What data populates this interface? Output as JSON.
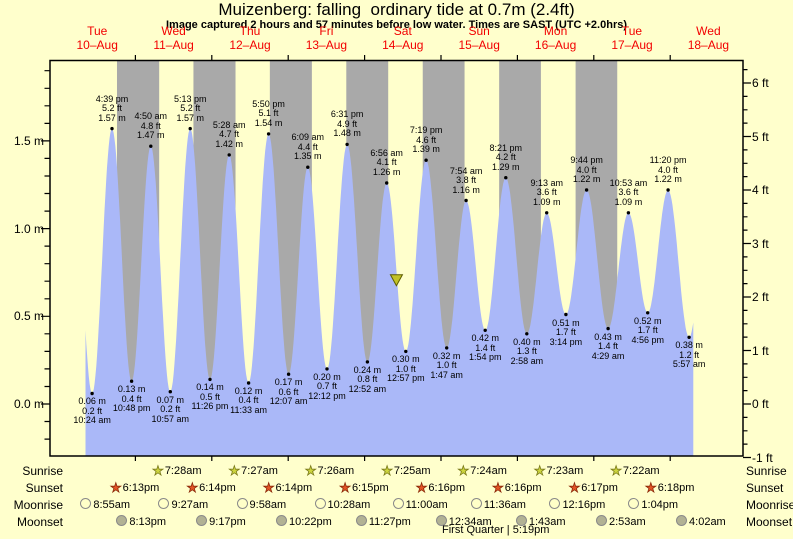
{
  "title": "Muizenberg: falling  ordinary tide at 0.7m (2.4ft)",
  "subtitle": "Image captured 2 hours and 57 minutes before low water. Times are SAST (UTC +2.0hrs)",
  "days": [
    {
      "weekday": "Tue",
      "date": "10–Aug"
    },
    {
      "weekday": "Wed",
      "date": "11–Aug"
    },
    {
      "weekday": "Thu",
      "date": "12–Aug"
    },
    {
      "weekday": "Fri",
      "date": "13–Aug"
    },
    {
      "weekday": "Sat",
      "date": "14–Aug"
    },
    {
      "weekday": "Sun",
      "date": "15–Aug"
    },
    {
      "weekday": "Mon",
      "date": "16–Aug"
    },
    {
      "weekday": "Tue",
      "date": "17–Aug"
    },
    {
      "weekday": "Wed",
      "date": "18–Aug"
    }
  ],
  "chart_data": {
    "type": "area",
    "title": "Muizenberg: falling  ordinary tide at 0.7m (2.4ft)",
    "ylabel_left": "m",
    "ylabel_right": "ft",
    "y_ticks_m": [
      {
        "value": 0.0,
        "label": "0.0 m"
      },
      {
        "value": 0.5,
        "label": "0.5 m"
      },
      {
        "value": 1.0,
        "label": "1.0 m"
      },
      {
        "value": 1.5,
        "label": "1.5 m"
      }
    ],
    "y_ticks_ft": [
      {
        "value": 6,
        "label": "6 ft"
      },
      {
        "value": 5,
        "label": "5 ft"
      },
      {
        "value": 4,
        "label": "4 ft"
      },
      {
        "value": 3,
        "label": "3 ft"
      },
      {
        "value": 2,
        "label": "2 ft"
      },
      {
        "value": 1,
        "label": "1 ft"
      },
      {
        "value": 0,
        "label": "0 ft"
      },
      {
        "value": -1,
        "label": "-1 ft"
      }
    ],
    "night_shading": true,
    "tide_events": [
      {
        "day": 0,
        "time": "10:24 am",
        "height_m": "0.06",
        "height_ft": "0.2",
        "type": "low"
      },
      {
        "day": 0,
        "time": "4:39 pm",
        "height_m": "1.57",
        "height_ft": "5.2",
        "type": "high"
      },
      {
        "day": 0,
        "time": "10:48 pm",
        "height_m": "0.13",
        "height_ft": "0.4",
        "type": "low"
      },
      {
        "day": 1,
        "time": "4:50 am",
        "height_m": "1.47",
        "height_ft": "4.8",
        "type": "high"
      },
      {
        "day": 1,
        "time": "10:57 am",
        "height_m": "0.07",
        "height_ft": "0.2",
        "type": "low"
      },
      {
        "day": 1,
        "time": "5:13 pm",
        "height_m": "1.57",
        "height_ft": "5.2",
        "type": "high"
      },
      {
        "day": 1,
        "time": "11:26 pm",
        "height_m": "0.14",
        "height_ft": "0.5",
        "type": "low"
      },
      {
        "day": 2,
        "time": "5:28 am",
        "height_m": "1.42",
        "height_ft": "4.7",
        "type": "high"
      },
      {
        "day": 2,
        "time": "11:33 am",
        "height_m": "0.12",
        "height_ft": "0.4",
        "type": "low"
      },
      {
        "day": 2,
        "time": "5:50 pm",
        "height_m": "1.54",
        "height_ft": "5.1",
        "type": "high"
      },
      {
        "day": 3,
        "time": "12:07 am",
        "height_m": "0.17",
        "height_ft": "0.6",
        "type": "low"
      },
      {
        "day": 3,
        "time": "6:09 am",
        "height_m": "1.35",
        "height_ft": "4.4",
        "type": "high"
      },
      {
        "day": 3,
        "time": "12:12 pm",
        "height_m": "0.20",
        "height_ft": "0.7",
        "type": "low"
      },
      {
        "day": 3,
        "time": "6:31 pm",
        "height_m": "1.48",
        "height_ft": "4.9",
        "type": "high"
      },
      {
        "day": 4,
        "time": "12:52 am",
        "height_m": "0.24",
        "height_ft": "0.8",
        "type": "low"
      },
      {
        "day": 4,
        "time": "6:56 am",
        "height_m": "1.26",
        "height_ft": "4.1",
        "type": "high"
      },
      {
        "day": 4,
        "time": "12:57 pm",
        "height_m": "0.30",
        "height_ft": "1.0",
        "type": "low"
      },
      {
        "day": 4,
        "time": "7:19 pm",
        "height_m": "1.39",
        "height_ft": "4.6",
        "type": "high"
      },
      {
        "day": 5,
        "time": "1:47 am",
        "height_m": "0.32",
        "height_ft": "1.0",
        "type": "low"
      },
      {
        "day": 5,
        "time": "7:54 am",
        "height_m": "1.16",
        "height_ft": "3.8",
        "type": "high"
      },
      {
        "day": 5,
        "time": "1:54 pm",
        "height_m": "0.42",
        "height_ft": "1.4",
        "type": "low"
      },
      {
        "day": 5,
        "time": "8:21 pm",
        "height_m": "1.29",
        "height_ft": "4.2",
        "type": "high"
      },
      {
        "day": 6,
        "time": "2:58 am",
        "height_m": "0.40",
        "height_ft": "1.3",
        "type": "low"
      },
      {
        "day": 6,
        "time": "9:13 am",
        "height_m": "1.09",
        "height_ft": "3.6",
        "type": "high"
      },
      {
        "day": 6,
        "time": "3:14 pm",
        "height_m": "0.51",
        "height_ft": "1.7",
        "type": "low"
      },
      {
        "day": 6,
        "time": "9:44 pm",
        "height_m": "1.22",
        "height_ft": "4.0",
        "type": "high"
      },
      {
        "day": 7,
        "time": "4:29 am",
        "height_m": "0.43",
        "height_ft": "1.4",
        "type": "low"
      },
      {
        "day": 7,
        "time": "10:53 am",
        "height_m": "1.09",
        "height_ft": "3.6",
        "type": "high"
      },
      {
        "day": 7,
        "time": "4:56 pm",
        "height_m": "0.52",
        "height_ft": "1.7",
        "type": "low"
      },
      {
        "day": 7,
        "time": "11:20 pm",
        "height_m": "1.22",
        "height_ft": "4.0",
        "type": "high"
      },
      {
        "day": 8,
        "time": "5:57 am",
        "height_m": "0.38",
        "height_ft": "1.2",
        "type": "low"
      }
    ],
    "current_marker": {
      "day": 4,
      "time": "10:00 am",
      "height_m": 0.7
    }
  },
  "astro": {
    "sunrise": [
      {
        "day": 1,
        "time": "7:28am"
      },
      {
        "day": 2,
        "time": "7:27am"
      },
      {
        "day": 3,
        "time": "7:26am"
      },
      {
        "day": 4,
        "time": "7:25am"
      },
      {
        "day": 5,
        "time": "7:24am"
      },
      {
        "day": 6,
        "time": "7:23am"
      },
      {
        "day": 7,
        "time": "7:22am"
      }
    ],
    "sunset": [
      {
        "day": 0,
        "time": "6:13pm"
      },
      {
        "day": 1,
        "time": "6:14pm"
      },
      {
        "day": 2,
        "time": "6:14pm"
      },
      {
        "day": 3,
        "time": "6:15pm"
      },
      {
        "day": 4,
        "time": "6:16pm"
      },
      {
        "day": 5,
        "time": "6:16pm"
      },
      {
        "day": 6,
        "time": "6:17pm"
      },
      {
        "day": 7,
        "time": "6:18pm"
      }
    ],
    "moonrise": [
      {
        "day": 0,
        "time": "8:55am"
      },
      {
        "day": 1,
        "time": "9:27am"
      },
      {
        "day": 2,
        "time": "9:58am"
      },
      {
        "day": 3,
        "time": "10:28am"
      },
      {
        "day": 4,
        "time": "11:00am"
      },
      {
        "day": 5,
        "time": "11:36am"
      },
      {
        "day": 6,
        "time": "12:16pm"
      },
      {
        "day": 7,
        "time": "1:04pm"
      }
    ],
    "moonset": [
      {
        "day": 0,
        "time": "8:13pm"
      },
      {
        "day": 1,
        "time": "9:17pm"
      },
      {
        "day": 2,
        "time": "10:22pm"
      },
      {
        "day": 3,
        "time": "11:27pm"
      },
      {
        "day": 5,
        "time": "12:34am"
      },
      {
        "day": 6,
        "time": "1:43am"
      },
      {
        "day": 7,
        "time": "2:53am"
      },
      {
        "day": 8,
        "time": "4:02am"
      }
    ]
  },
  "row_labels": {
    "sunrise": "Sunrise",
    "sunset": "Sunset",
    "moonrise": "Moonrise",
    "moonset": "Moonset"
  },
  "moon_phase_note": "First Quarter | 5:19pm",
  "colors": {
    "background": "#ffffcc",
    "night_band": "#a9a9a9",
    "tide_fill": "#aab8f8",
    "day_label": "#f20000",
    "axis": "#000000",
    "sunrise_star": "#cdd53e",
    "sunrise_star_outline": "#7a7a1a",
    "sunset_star": "#e35424",
    "sunset_star_outline": "#8a2808",
    "moonrise_disc": "#ffffc8",
    "moonset_disc": "#b2b294",
    "marker_fill": "#c2c228",
    "marker_outline": "#5c5c00"
  }
}
